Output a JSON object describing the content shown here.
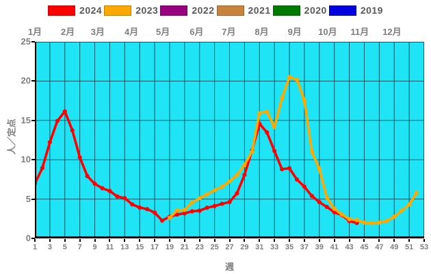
{
  "chart_data": {
    "type": "line",
    "title": "",
    "xlabel": "週",
    "ylabel": "人／定点",
    "x_axis": {
      "min": 1,
      "max": 53,
      "ticks": [
        1,
        3,
        5,
        7,
        9,
        11,
        13,
        15,
        17,
        19,
        21,
        23,
        25,
        27,
        29,
        31,
        33,
        35,
        37,
        39,
        41,
        43,
        45,
        47,
        49,
        51,
        53
      ]
    },
    "y_axis": {
      "min": 0,
      "max": 25,
      "ticks": [
        0,
        5,
        10,
        15,
        20,
        25
      ]
    },
    "month_axis": [
      {
        "label": "1月",
        "week": 1.0
      },
      {
        "label": "2月",
        "week": 5.4
      },
      {
        "label": "3月",
        "week": 9.4
      },
      {
        "label": "4月",
        "week": 13.9
      },
      {
        "label": "5月",
        "week": 18.1
      },
      {
        "label": "6月",
        "week": 22.6
      },
      {
        "label": "7月",
        "week": 26.9
      },
      {
        "label": "8月",
        "week": 31.3
      },
      {
        "label": "9月",
        "week": 35.7
      },
      {
        "label": "10月",
        "week": 40.1
      },
      {
        "label": "11月",
        "week": 44.4
      },
      {
        "label": "12月",
        "week": 48.7
      }
    ],
    "legend_position": "top",
    "grid": true,
    "plot_background": "#1FE4F6",
    "grid_color": "#0B5A66",
    "series": [
      {
        "name": "2024",
        "color": "#FF0000",
        "start_week": 1,
        "values": [
          6.96,
          8.96,
          12.23,
          14.93,
          16.15,
          13.75,
          10.31,
          7.92,
          6.94,
          6.38,
          6.03,
          5.33,
          5.11,
          4.33,
          3.92,
          3.72,
          3.28,
          2.27,
          2.76,
          3.03,
          3.19,
          3.44,
          3.52,
          3.9,
          4.11,
          4.4,
          4.62,
          5.73,
          8.07,
          11.18,
          14.58,
          13.47,
          11.11,
          8.8,
          8.92,
          7.49,
          6.57,
          5.39,
          4.61,
          4.0,
          3.34,
          2.96,
          2.21,
          1.97
        ]
      },
      {
        "name": "2023",
        "color": "#FFA800",
        "start_week": 19,
        "values": [
          2.63,
          3.55,
          3.63,
          4.55,
          5.11,
          5.6,
          6.13,
          6.55,
          7.24,
          8.07,
          9.35,
          11.04,
          15.91,
          16.1,
          14.16,
          17.84,
          20.5,
          20.19,
          17.54,
          11.01,
          8.83,
          5.2,
          3.76,
          3.03,
          2.44,
          2.33,
          2.01,
          1.95,
          2.01,
          2.21,
          2.75,
          3.52,
          4.3,
          5.79
        ]
      },
      {
        "name": "2022",
        "color": "#990080",
        "start_week": null,
        "values": []
      },
      {
        "name": "2021",
        "color": "#C8843F",
        "start_week": null,
        "values": []
      },
      {
        "name": "2020",
        "color": "#007B00",
        "start_week": null,
        "values": []
      },
      {
        "name": "2019",
        "color": "#0000E0",
        "start_week": null,
        "values": []
      }
    ]
  }
}
